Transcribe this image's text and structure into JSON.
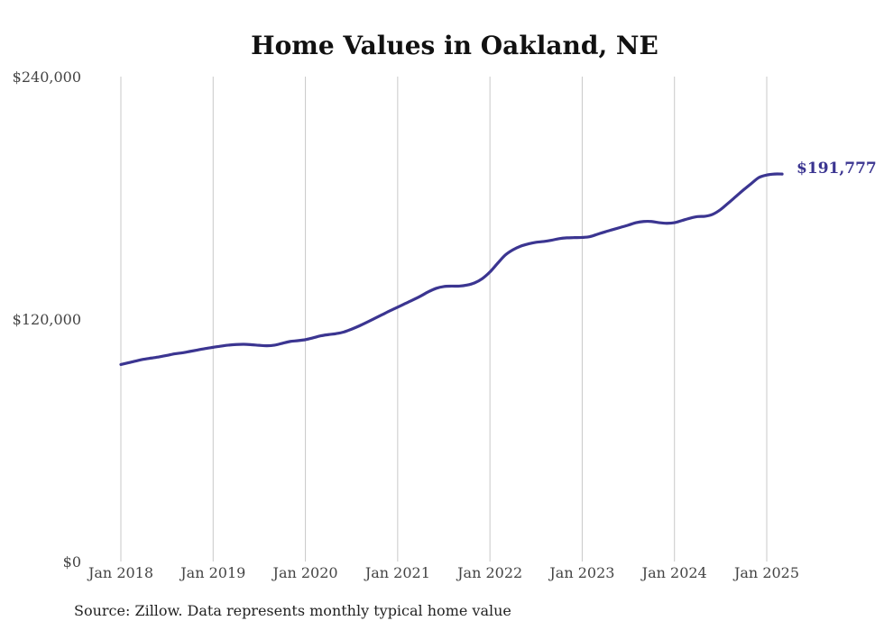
{
  "chart_data": {
    "type": "line",
    "title": "Home Values in Oakland, NE",
    "xlabel": "",
    "ylabel": "",
    "ylim": [
      0,
      240000
    ],
    "y_ticks": [
      {
        "value": 0,
        "label": "$0"
      },
      {
        "value": 120000,
        "label": "$120,000"
      },
      {
        "value": 240000,
        "label": "$240,000"
      }
    ],
    "x_range": [
      "2018-01",
      "2025-03"
    ],
    "x_ticks": [
      "Jan 2018",
      "Jan 2019",
      "Jan 2020",
      "Jan 2021",
      "Jan 2022",
      "Jan 2023",
      "Jan 2024",
      "Jan 2025"
    ],
    "grid": "vertical",
    "line_color": "#3b3591",
    "end_label": "$191,777",
    "series": [
      {
        "x": [
          "2018-01",
          "2018-02",
          "2018-03",
          "2018-04",
          "2018-05",
          "2018-06",
          "2018-07",
          "2018-08",
          "2018-09",
          "2018-10",
          "2018-11",
          "2018-12",
          "2019-01",
          "2019-02",
          "2019-03",
          "2019-04",
          "2019-05",
          "2019-06",
          "2019-07",
          "2019-08",
          "2019-09",
          "2019-10",
          "2019-11",
          "2019-12",
          "2020-01",
          "2020-02",
          "2020-03",
          "2020-04",
          "2020-05",
          "2020-06",
          "2020-07",
          "2020-08",
          "2020-09",
          "2020-10",
          "2020-11",
          "2020-12",
          "2021-01",
          "2021-02",
          "2021-03",
          "2021-04",
          "2021-05",
          "2021-06",
          "2021-07",
          "2021-08",
          "2021-09",
          "2021-10",
          "2021-11",
          "2021-12",
          "2022-01",
          "2022-02",
          "2022-03",
          "2022-04",
          "2022-05",
          "2022-06",
          "2022-07",
          "2022-08",
          "2022-09",
          "2022-10",
          "2022-11",
          "2022-12",
          "2023-01",
          "2023-02",
          "2023-03",
          "2023-04",
          "2023-05",
          "2023-06",
          "2023-07",
          "2023-08",
          "2023-09",
          "2023-10",
          "2023-11",
          "2023-12",
          "2024-01",
          "2024-02",
          "2024-03",
          "2024-04",
          "2024-05",
          "2024-06",
          "2024-07",
          "2024-08",
          "2024-09",
          "2024-10",
          "2024-11",
          "2024-12",
          "2025-01",
          "2025-02",
          "2025-03"
        ],
        "values": [
          97500,
          98400,
          99300,
          100100,
          100700,
          101300,
          102000,
          102800,
          103300,
          104000,
          104700,
          105400,
          106000,
          106600,
          107100,
          107400,
          107500,
          107300,
          107000,
          106800,
          107100,
          108000,
          108900,
          109300,
          109800,
          110700,
          111700,
          112300,
          112800,
          113600,
          115000,
          116600,
          118400,
          120300,
          122200,
          124100,
          125900,
          127700,
          129500,
          131400,
          133500,
          135200,
          136100,
          136300,
          136300,
          136800,
          137900,
          140000,
          143300,
          147600,
          151700,
          154300,
          156100,
          157200,
          158000,
          158400,
          159000,
          159800,
          160200,
          160300,
          160400,
          160800,
          162000,
          163200,
          164300,
          165400,
          166500,
          167700,
          168300,
          168300,
          167700,
          167400,
          167700,
          168800,
          169900,
          170700,
          170900,
          171900,
          174200,
          177400,
          180700,
          184000,
          187100,
          190100,
          191300,
          191777,
          191777
        ]
      }
    ]
  },
  "source_note": "Source: Zillow. Data represents monthly typical home value"
}
